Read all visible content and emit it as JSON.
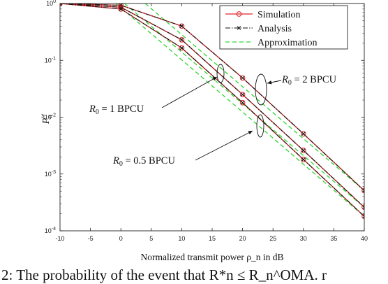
{
  "chart_data": {
    "type": "line",
    "xlabel": "Normalized transmit power ρ_n in dB",
    "ylabel_main": "P",
    "ylabel_sup": "w",
    "ylabel_sub": "n",
    "xlim": [
      -10,
      40
    ],
    "ylim": [
      0.0001,
      1
    ],
    "yscale": "log",
    "grid": false,
    "legend_position": "top-right",
    "xticks": [
      -10,
      -5,
      0,
      5,
      10,
      15,
      20,
      25,
      30,
      35,
      40
    ],
    "xtick_labels": [
      "-10",
      "-5",
      "0",
      "5",
      "10",
      "15",
      "20",
      "25",
      "30",
      "35",
      "40"
    ],
    "yticks": [
      1,
      0.1,
      0.01,
      0.001,
      0.0001
    ],
    "ytick_labels": [
      {
        "base": "10",
        "exp": "0"
      },
      {
        "base": "10",
        "exp": "-1"
      },
      {
        "base": "10",
        "exp": "-2"
      },
      {
        "base": "10",
        "exp": "-3"
      },
      {
        "base": "10",
        "exp": "-4"
      }
    ],
    "legend": [
      {
        "label": "Simulation",
        "color": "#e0262a",
        "style": "solid-circle"
      },
      {
        "label": "Analysis",
        "color": "#111111",
        "style": "dashdot-x"
      },
      {
        "label": "Approximation",
        "color": "#2fd62f",
        "style": "dashed"
      }
    ],
    "curves": [
      {
        "rate": "R0 = 2 BPCU",
        "x": [
          -10,
          0,
          10,
          20,
          30,
          40
        ],
        "simulation": [
          1,
          0.93,
          0.4,
          0.049,
          0.0051,
          0.00051
        ],
        "analysis": [
          1,
          0.93,
          0.4,
          0.049,
          0.0051,
          0.00051
        ],
        "approximation": {
          "x": [
            4,
            40
          ],
          "y": [
            1,
            0.00051
          ]
        }
      },
      {
        "rate": "R0 = 1 BPCU",
        "x": [
          -10,
          0,
          10,
          20,
          30,
          40
        ],
        "simulation": [
          1,
          0.86,
          0.23,
          0.025,
          0.0026,
          0.00026
        ],
        "analysis": [
          1,
          0.86,
          0.23,
          0.025,
          0.0026,
          0.00026
        ],
        "approximation": {
          "x": [
            0.6,
            40
          ],
          "y": [
            1,
            0.00026
          ]
        }
      },
      {
        "rate": "R0 = 0.5 BPCU",
        "x": [
          -10,
          0,
          10,
          20,
          30,
          40
        ],
        "simulation": [
          1,
          0.8,
          0.165,
          0.018,
          0.0018,
          0.00018
        ],
        "analysis": [
          1,
          0.8,
          0.165,
          0.018,
          0.0018,
          0.00018
        ],
        "approximation": {
          "x": [
            -0.8,
            40
          ],
          "y": [
            1,
            0.00018
          ]
        }
      }
    ],
    "annotations": [
      {
        "main": "R",
        "sub": "0",
        "rest": " = 2 BPCU"
      },
      {
        "main": "R",
        "sub": "0",
        "rest": " = 1 BPCU"
      },
      {
        "main": "R",
        "sub": "0",
        "rest": " = 0.5 BPCU"
      }
    ],
    "caption": "2: The probability of the event that R*n ≤ R_n^OMA. r"
  }
}
